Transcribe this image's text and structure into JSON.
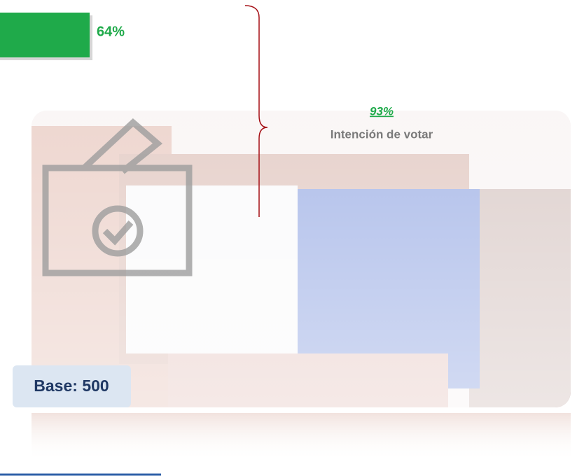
{
  "chart_data": {
    "type": "bar",
    "categories": [
      null
    ],
    "values": [
      64
    ],
    "value_labels": [
      "64%"
    ],
    "color": "#1faa4a",
    "total": 93,
    "total_label": "93%",
    "total_text": "Intención de votar",
    "base": "Base: 500"
  }
}
